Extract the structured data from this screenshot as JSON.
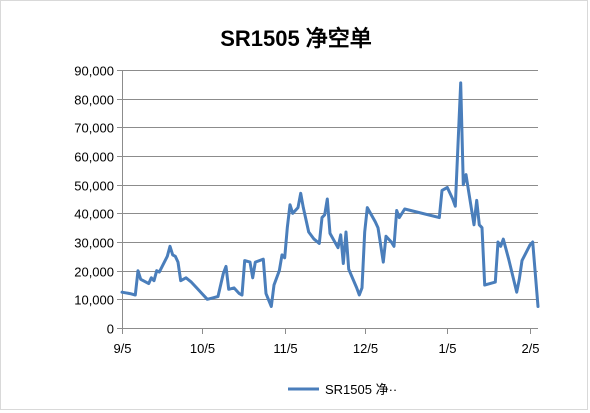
{
  "chart_data": {
    "type": "line",
    "title": "SR1505 净空单",
    "xlabel": "",
    "ylabel": "",
    "ylim": [
      0,
      90000
    ],
    "y_ticks": [
      0,
      10000,
      20000,
      30000,
      40000,
      50000,
      60000,
      70000,
      80000,
      90000
    ],
    "y_tick_labels": [
      "0",
      "10,000",
      "20,000",
      "30,000",
      "40,000",
      "50,000",
      "60,000",
      "70,000",
      "80,000",
      "90,000"
    ],
    "x_ticks": [
      "9/5",
      "10/5",
      "11/5",
      "12/5",
      "1/5",
      "2/5"
    ],
    "x_tick_dates": [
      "2014-09-05",
      "2014-10-05",
      "2014-11-05",
      "2014-12-05",
      "2015-01-05",
      "2015-02-05"
    ],
    "xlim": [
      "2014-09-05",
      "2015-02-11"
    ],
    "grid": "horizontal",
    "legend_position": "bottom",
    "line_color": "#4a7ebb",
    "series": [
      {
        "name": "SR1505 净··",
        "points": [
          [
            "2014-09-05",
            12500
          ],
          [
            "2014-09-08",
            12000
          ],
          [
            "2014-09-10",
            11500
          ],
          [
            "2014-09-11",
            20000
          ],
          [
            "2014-09-12",
            17000
          ],
          [
            "2014-09-15",
            15500
          ],
          [
            "2014-09-16",
            17500
          ],
          [
            "2014-09-17",
            16500
          ],
          [
            "2014-09-18",
            20000
          ],
          [
            "2014-09-19",
            19500
          ],
          [
            "2014-09-22",
            25000
          ],
          [
            "2014-09-23",
            28500
          ],
          [
            "2014-09-24",
            25500
          ],
          [
            "2014-09-25",
            25000
          ],
          [
            "2014-09-26",
            23000
          ],
          [
            "2014-09-27",
            16500
          ],
          [
            "2014-09-29",
            17500
          ],
          [
            "2014-10-01",
            16000
          ],
          [
            "2014-10-03",
            14000
          ],
          [
            "2014-10-05",
            12000
          ],
          [
            "2014-10-07",
            10000
          ],
          [
            "2014-10-09",
            10500
          ],
          [
            "2014-10-11",
            11000
          ],
          [
            "2014-10-13",
            19000
          ],
          [
            "2014-10-14",
            21500
          ],
          [
            "2014-10-15",
            13500
          ],
          [
            "2014-10-17",
            14000
          ],
          [
            "2014-10-19",
            12000
          ],
          [
            "2014-10-20",
            11500
          ],
          [
            "2014-10-21",
            23500
          ],
          [
            "2014-10-23",
            23000
          ],
          [
            "2014-10-24",
            17500
          ],
          [
            "2014-10-25",
            23000
          ],
          [
            "2014-10-28",
            24000
          ],
          [
            "2014-10-29",
            12000
          ],
          [
            "2014-10-31",
            7500
          ],
          [
            "2014-11-01",
            15000
          ],
          [
            "2014-11-03",
            20000
          ],
          [
            "2014-11-04",
            25500
          ],
          [
            "2014-11-05",
            24500
          ],
          [
            "2014-11-06",
            35000
          ],
          [
            "2014-11-07",
            43000
          ],
          [
            "2014-11-08",
            40000
          ],
          [
            "2014-11-10",
            42000
          ],
          [
            "2014-11-11",
            47000
          ],
          [
            "2014-11-12",
            42000
          ],
          [
            "2014-11-14",
            33500
          ],
          [
            "2014-11-16",
            31000
          ],
          [
            "2014-11-18",
            29500
          ],
          [
            "2014-11-19",
            38500
          ],
          [
            "2014-11-20",
            39500
          ],
          [
            "2014-11-21",
            45000
          ],
          [
            "2014-11-22",
            33000
          ],
          [
            "2014-11-25",
            28000
          ],
          [
            "2014-11-26",
            32500
          ],
          [
            "2014-11-27",
            22500
          ],
          [
            "2014-11-28",
            33500
          ],
          [
            "2014-11-29",
            20500
          ],
          [
            "2014-12-02",
            14000
          ],
          [
            "2014-12-03",
            11500
          ],
          [
            "2014-12-04",
            14000
          ],
          [
            "2014-12-05",
            33500
          ],
          [
            "2014-12-06",
            42000
          ],
          [
            "2014-12-09",
            37000
          ],
          [
            "2014-12-10",
            35000
          ],
          [
            "2014-12-12",
            23000
          ],
          [
            "2014-12-13",
            32000
          ],
          [
            "2014-12-15",
            30000
          ],
          [
            "2014-12-16",
            28500
          ],
          [
            "2014-12-17",
            41000
          ],
          [
            "2014-12-18",
            38500
          ],
          [
            "2014-12-20",
            41500
          ],
          [
            "2015-01-02",
            38500
          ],
          [
            "2015-01-03",
            48000
          ],
          [
            "2015-01-05",
            49000
          ],
          [
            "2015-01-07",
            45000
          ],
          [
            "2015-01-08",
            42500
          ],
          [
            "2015-01-10",
            85500
          ],
          [
            "2015-01-11",
            50000
          ],
          [
            "2015-01-12",
            53500
          ],
          [
            "2015-01-13",
            47500
          ],
          [
            "2015-01-15",
            36000
          ],
          [
            "2015-01-16",
            44500
          ],
          [
            "2015-01-17",
            36000
          ],
          [
            "2015-01-18",
            35000
          ],
          [
            "2015-01-19",
            15000
          ],
          [
            "2015-01-21",
            15500
          ],
          [
            "2015-01-23",
            16000
          ],
          [
            "2015-01-24",
            30000
          ],
          [
            "2015-01-25",
            28500
          ],
          [
            "2015-01-26",
            31000
          ],
          [
            "2015-01-28",
            24000
          ],
          [
            "2015-01-31",
            12500
          ],
          [
            "2015-02-01",
            17000
          ],
          [
            "2015-02-02",
            23500
          ],
          [
            "2015-02-05",
            29000
          ],
          [
            "2015-02-06",
            30000
          ],
          [
            "2015-02-08",
            7500
          ]
        ]
      }
    ]
  }
}
